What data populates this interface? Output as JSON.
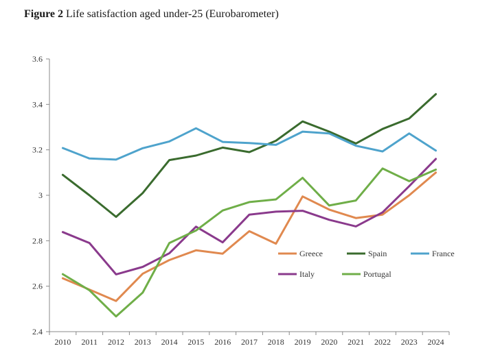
{
  "figure": {
    "label": "Figure 2",
    "caption": "Life satisfaction aged under-25 (Eurobarometer)"
  },
  "chart_data": {
    "type": "line",
    "title": "Figure 2 Life satisfaction aged under-25 (Eurobarometer)",
    "xlabel": "",
    "ylabel": "",
    "x": [
      "2010",
      "2011",
      "2012",
      "2013",
      "2014",
      "2015",
      "2016",
      "2017",
      "2018",
      "2019",
      "2020",
      "2021",
      "2022",
      "2023",
      "2024"
    ],
    "ylim": [
      2.4,
      3.6
    ],
    "yticks": [
      "2.4",
      "2.6",
      "2.8",
      "3",
      "3.2",
      "3.4",
      "3.6"
    ],
    "grid": false,
    "legend_position": "lower-right",
    "series": [
      {
        "name": "Greece",
        "color": "#e0894f",
        "values": [
          2.635,
          2.585,
          2.535,
          2.655,
          2.715,
          2.758,
          2.743,
          2.842,
          2.787,
          2.995,
          2.937,
          2.9,
          2.915,
          3.0,
          3.1
        ]
      },
      {
        "name": "Spain",
        "color": "#3a6b2e",
        "values": [
          3.09,
          3.0,
          2.905,
          3.01,
          3.155,
          3.175,
          3.21,
          3.19,
          3.24,
          3.325,
          3.28,
          3.228,
          3.292,
          3.338,
          3.445
        ]
      },
      {
        "name": "France",
        "color": "#4ea3cc",
        "values": [
          3.208,
          3.162,
          3.157,
          3.207,
          3.237,
          3.295,
          3.235,
          3.23,
          3.222,
          3.28,
          3.272,
          3.218,
          3.193,
          3.272,
          3.197
        ]
      },
      {
        "name": "Italy",
        "color": "#8a3a8c",
        "values": [
          2.838,
          2.79,
          2.652,
          2.685,
          2.745,
          2.862,
          2.793,
          2.915,
          2.928,
          2.932,
          2.892,
          2.863,
          2.925,
          3.04,
          3.16
        ]
      },
      {
        "name": "Portugal",
        "color": "#6fae48",
        "values": [
          2.653,
          2.582,
          2.467,
          2.572,
          2.79,
          2.845,
          2.933,
          2.97,
          2.982,
          3.077,
          2.955,
          2.977,
          3.118,
          3.062,
          3.113
        ]
      }
    ]
  }
}
